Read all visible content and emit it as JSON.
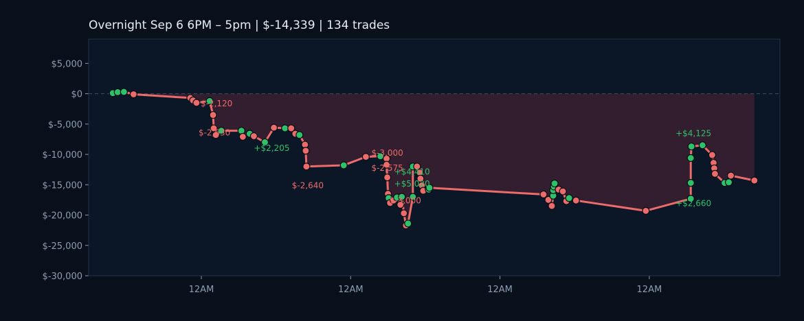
{
  "title": "Overnight  Sep 6 6PM – 5pm  |  $-14,339  |  134 trades",
  "colors": {
    "background": "#08101c",
    "plot_background": "#0b1626",
    "line": "#ec6b6b",
    "win": "#2fc16a",
    "loss": "#ec6b6b",
    "fill": "#3a2030",
    "zero_line": "#3f4e60",
    "frame": "#24324a"
  },
  "chart_data": {
    "type": "line",
    "title": "Overnight  Sep 6 6PM – 5pm  |  $-14,339  |  134 trades",
    "xlabel": "",
    "ylabel": "",
    "xlim": [
      0,
      100
    ],
    "ylim": [
      -30000,
      9000
    ],
    "y_ticks": [
      5000,
      0,
      -5000,
      -10000,
      -15000,
      -20000,
      -25000,
      -30000
    ],
    "y_tick_labels": [
      "$5,000",
      "$0",
      "$-5,000",
      "$-10,000",
      "$-15,000",
      "$-20,000",
      "$-25,000",
      "$-30,000"
    ],
    "x_ticks": [
      16.3,
      37.9,
      59.5,
      81.1
    ],
    "x_tick_labels": [
      "12AM",
      "12AM",
      "12AM",
      "12AM"
    ],
    "zero_line": true,
    "grid": false,
    "points": [
      {
        "x": 3.5,
        "y": 100,
        "r": "w"
      },
      {
        "x": 4.2,
        "y": 250,
        "r": "w"
      },
      {
        "x": 5.1,
        "y": 300,
        "r": "w"
      },
      {
        "x": 6.5,
        "y": -100,
        "r": "l"
      },
      {
        "x": 14.7,
        "y": -700,
        "r": "l"
      },
      {
        "x": 15.1,
        "y": -1100,
        "r": "l"
      },
      {
        "x": 15.6,
        "y": -1500,
        "r": "l"
      },
      {
        "x": 17.5,
        "y": -1200,
        "r": "w"
      },
      {
        "x": 18.0,
        "y": -3500,
        "r": "l"
      },
      {
        "x": 18.1,
        "y": -5700,
        "r": "l"
      },
      {
        "x": 18.4,
        "y": -6800,
        "r": "l"
      },
      {
        "x": 19.2,
        "y": -6100,
        "r": "w"
      },
      {
        "x": 22.1,
        "y": -6100,
        "r": "w"
      },
      {
        "x": 22.3,
        "y": -7100,
        "r": "l"
      },
      {
        "x": 23.3,
        "y": -6600,
        "r": "w"
      },
      {
        "x": 23.9,
        "y": -7000,
        "r": "l"
      },
      {
        "x": 25.5,
        "y": -8000,
        "r": "w"
      },
      {
        "x": 26.8,
        "y": -5600,
        "r": "l"
      },
      {
        "x": 28.4,
        "y": -5700,
        "r": "w"
      },
      {
        "x": 29.3,
        "y": -5700,
        "r": "l"
      },
      {
        "x": 29.9,
        "y": -6600,
        "r": "l"
      },
      {
        "x": 30.5,
        "y": -6800,
        "r": "w"
      },
      {
        "x": 31.3,
        "y": -8400,
        "r": "l"
      },
      {
        "x": 31.4,
        "y": -9400,
        "r": "l"
      },
      {
        "x": 31.5,
        "y": -12000,
        "r": "l"
      },
      {
        "x": 36.9,
        "y": -11800,
        "r": "w"
      },
      {
        "x": 40.1,
        "y": -10400,
        "r": "l"
      },
      {
        "x": 42.2,
        "y": -10300,
        "r": "w"
      },
      {
        "x": 43.1,
        "y": -10700,
        "r": "l"
      },
      {
        "x": 43.1,
        "y": -11700,
        "r": "l"
      },
      {
        "x": 43.2,
        "y": -13800,
        "r": "l"
      },
      {
        "x": 43.3,
        "y": -16500,
        "r": "l"
      },
      {
        "x": 43.4,
        "y": -17200,
        "r": "w"
      },
      {
        "x": 43.6,
        "y": -18000,
        "r": "l"
      },
      {
        "x": 44.1,
        "y": -17600,
        "r": "l"
      },
      {
        "x": 44.6,
        "y": -17100,
        "r": "w"
      },
      {
        "x": 45.1,
        "y": -18300,
        "r": "l"
      },
      {
        "x": 45.3,
        "y": -17000,
        "r": "w"
      },
      {
        "x": 45.6,
        "y": -19700,
        "r": "l"
      },
      {
        "x": 45.9,
        "y": -21700,
        "r": "l"
      },
      {
        "x": 46.2,
        "y": -21400,
        "r": "w"
      },
      {
        "x": 46.9,
        "y": -17000,
        "r": "w"
      },
      {
        "x": 46.9,
        "y": -12000,
        "r": "w"
      },
      {
        "x": 47.5,
        "y": -12000,
        "r": "l"
      },
      {
        "x": 47.9,
        "y": -13000,
        "r": "l"
      },
      {
        "x": 48.0,
        "y": -14000,
        "r": "l"
      },
      {
        "x": 48.2,
        "y": -15100,
        "r": "l"
      },
      {
        "x": 48.4,
        "y": -16000,
        "r": "l"
      },
      {
        "x": 49.2,
        "y": -15800,
        "r": "w"
      },
      {
        "x": 49.3,
        "y": -15500,
        "r": "w"
      },
      {
        "x": 65.8,
        "y": -16600,
        "r": "l"
      },
      {
        "x": 66.5,
        "y": -17500,
        "r": "l"
      },
      {
        "x": 67.0,
        "y": -18500,
        "r": "l"
      },
      {
        "x": 67.2,
        "y": -16800,
        "r": "w"
      },
      {
        "x": 67.2,
        "y": -15900,
        "r": "w"
      },
      {
        "x": 67.3,
        "y": -15300,
        "r": "w"
      },
      {
        "x": 67.4,
        "y": -14800,
        "r": "w"
      },
      {
        "x": 68.0,
        "y": -15800,
        "r": "l"
      },
      {
        "x": 68.6,
        "y": -16100,
        "r": "l"
      },
      {
        "x": 69.1,
        "y": -17700,
        "r": "l"
      },
      {
        "x": 69.5,
        "y": -17200,
        "r": "w"
      },
      {
        "x": 70.5,
        "y": -17600,
        "r": "l"
      },
      {
        "x": 80.6,
        "y": -19300,
        "r": "l"
      },
      {
        "x": 87.1,
        "y": -17300,
        "r": "w"
      },
      {
        "x": 87.1,
        "y": -14700,
        "r": "w"
      },
      {
        "x": 87.1,
        "y": -10600,
        "r": "w"
      },
      {
        "x": 87.2,
        "y": -8700,
        "r": "w"
      },
      {
        "x": 88.8,
        "y": -8500,
        "r": "w"
      },
      {
        "x": 90.2,
        "y": -10100,
        "r": "l"
      },
      {
        "x": 90.4,
        "y": -11400,
        "r": "l"
      },
      {
        "x": 90.5,
        "y": -12300,
        "r": "l"
      },
      {
        "x": 90.6,
        "y": -13200,
        "r": "l"
      },
      {
        "x": 92.0,
        "y": -14700,
        "r": "w"
      },
      {
        "x": 92.6,
        "y": -14600,
        "r": "w"
      },
      {
        "x": 92.9,
        "y": -13500,
        "r": "l"
      },
      {
        "x": 96.3,
        "y": -14300,
        "r": "l"
      }
    ],
    "annotations": [
      {
        "text": "$-2,120",
        "x": 16.2,
        "y": -2100,
        "kind": "loss"
      },
      {
        "text": "$-2,630",
        "x": 15.9,
        "y": -6900,
        "kind": "loss"
      },
      {
        "text": "+$2,205",
        "x": 23.9,
        "y": -9400,
        "kind": "win"
      },
      {
        "text": "$-2,640",
        "x": 29.4,
        "y": -15600,
        "kind": "loss"
      },
      {
        "text": "$-3,000",
        "x": 40.9,
        "y": -10200,
        "kind": "loss"
      },
      {
        "text": "$-2,575",
        "x": 40.9,
        "y": -12700,
        "kind": "loss"
      },
      {
        "text": "+$4,410",
        "x": 44.2,
        "y": -13300,
        "kind": "win"
      },
      {
        "text": "+$5,020",
        "x": 44.2,
        "y": -15300,
        "kind": "win"
      },
      {
        "text": "$-3,000",
        "x": 43.5,
        "y": -18100,
        "kind": "loss"
      },
      {
        "text": "+$4,125",
        "x": 84.9,
        "y": -7000,
        "kind": "win"
      },
      {
        "text": "+$2,660",
        "x": 84.9,
        "y": -18500,
        "kind": "win"
      }
    ]
  }
}
